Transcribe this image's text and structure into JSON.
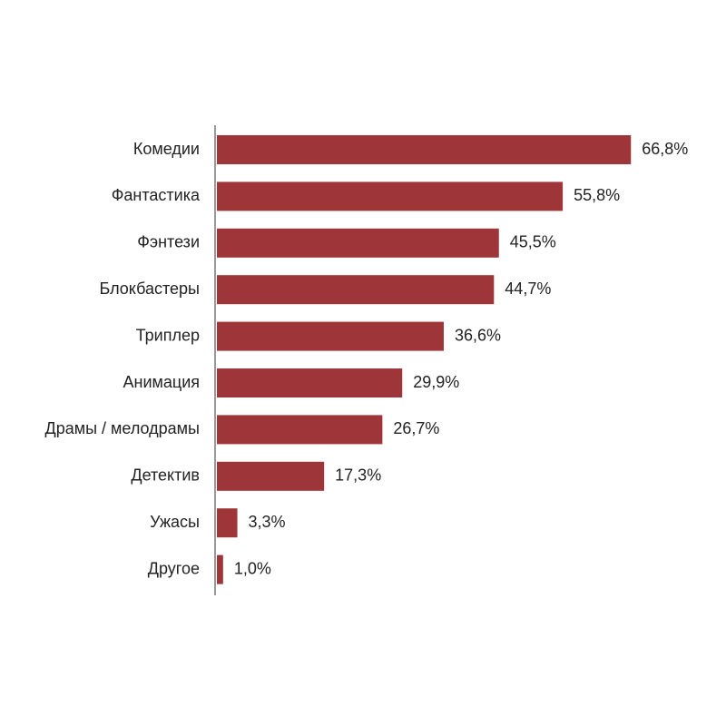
{
  "chart_data": {
    "type": "bar",
    "orientation": "horizontal",
    "color": "#9e3539",
    "categories": [
      "Комедии",
      "Фантастика",
      "Фэнтези",
      "Блокбастеры",
      "Триплер",
      "Анимация",
      "Драмы / мелодрамы",
      "Детектив",
      "Ужасы",
      "Другое"
    ],
    "values": [
      66.8,
      55.8,
      45.5,
      44.7,
      36.6,
      29.9,
      26.7,
      17.3,
      3.3,
      1.0
    ],
    "value_labels": [
      "66,8%",
      "55,8%",
      "45,5%",
      "44,7%",
      "36,6%",
      "29,9%",
      "26,7%",
      "17,3%",
      "3,3%",
      "1,0%"
    ]
  }
}
